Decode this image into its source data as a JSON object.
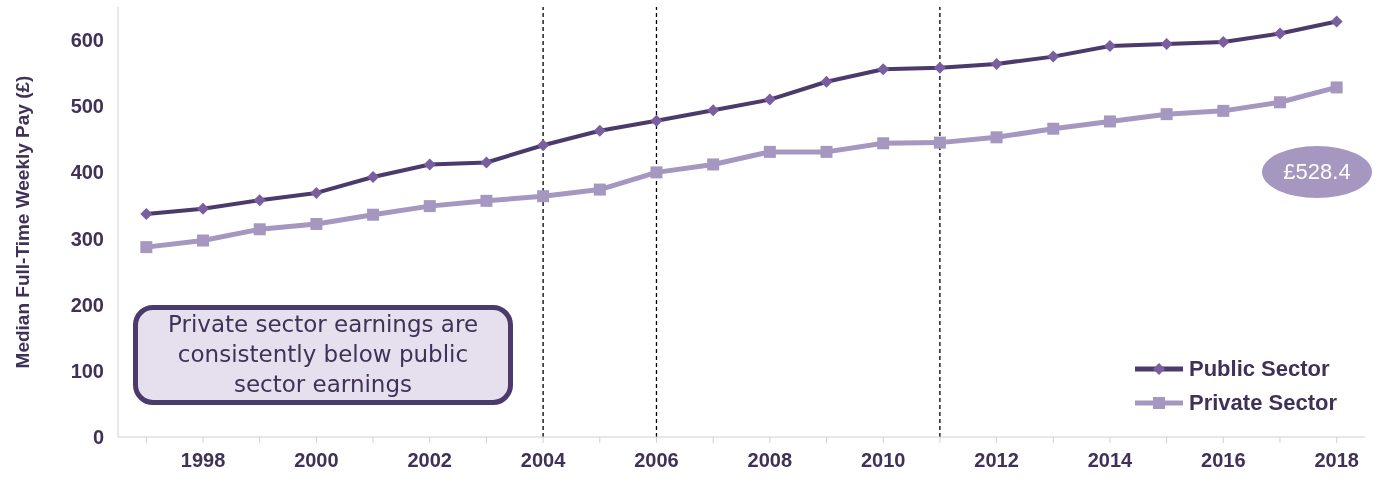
{
  "chart_data": {
    "type": "line",
    "ylabel": "Median Full-Time Weekly Pay (£)",
    "x": [
      1997,
      1998,
      1999,
      2000,
      2001,
      2002,
      2003,
      2004,
      2005,
      2006,
      2007,
      2008,
      2009,
      2010,
      2011,
      2012,
      2013,
      2014,
      2015,
      2016,
      2017,
      2018
    ],
    "series": [
      {
        "name": "Public Sector",
        "color": "#4b3a6b",
        "marker": "diamond",
        "values": [
          337,
          345,
          358,
          369,
          393,
          412,
          415,
          441,
          463,
          478,
          494,
          510,
          537,
          556,
          558,
          564,
          575,
          591,
          594,
          597,
          610,
          628
        ]
      },
      {
        "name": "Private Sector",
        "color": "#a597c0",
        "marker": "square",
        "values": [
          287,
          297,
          314,
          322,
          336,
          349,
          357,
          364,
          374,
          400,
          412,
          431,
          431,
          444,
          445,
          453,
          466,
          477,
          488,
          493,
          506,
          528.4
        ]
      }
    ],
    "xlim": [
      1996.5,
      2018.5
    ],
    "xticks": [
      {
        "value": 1997,
        "label": null
      },
      1998,
      {
        "value": 1999,
        "label": null
      },
      2000,
      {
        "value": 2001,
        "label": null
      },
      2002,
      {
        "value": 2003,
        "label": null
      },
      2004,
      {
        "value": 2005,
        "label": null
      },
      2006,
      {
        "value": 2007,
        "label": null
      },
      2008,
      {
        "value": 2009,
        "label": null
      },
      2010,
      {
        "value": 2011,
        "label": null
      },
      2012,
      {
        "value": 2013,
        "label": null
      },
      2014,
      {
        "value": 2015,
        "label": null
      },
      2016,
      {
        "value": 2017,
        "label": null
      },
      2018
    ],
    "ylim": [
      0,
      650
    ],
    "yticks": [
      0,
      100,
      200,
      300,
      400,
      500,
      600
    ],
    "grid": false,
    "legend": "bottom right",
    "line_style": "solid",
    "ref_lines": [
      {
        "axis": "x",
        "value": 2004,
        "color": "#000000",
        "line_style": "dashed"
      },
      {
        "axis": "x",
        "value": 2006,
        "color": "#000000",
        "line_style": "dashed"
      },
      {
        "axis": "x",
        "value": 2011,
        "color": "#000000",
        "line_style": "dashed"
      }
    ],
    "annotations": [
      "Private sector earnings are consistently below public sector earnings",
      "£528.4"
    ]
  }
}
